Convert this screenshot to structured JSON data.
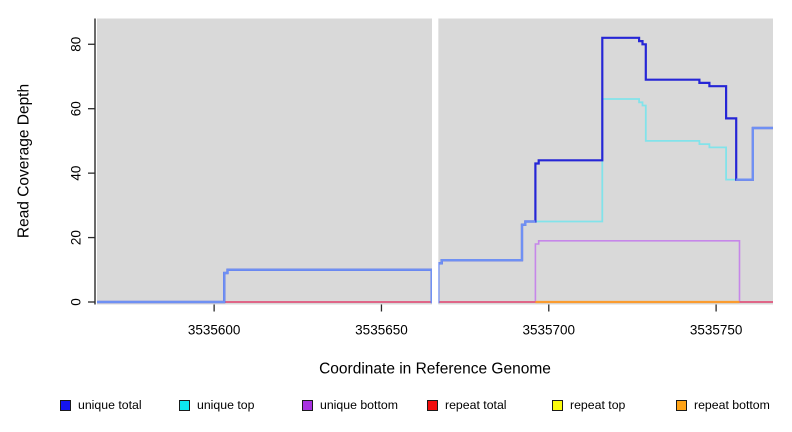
{
  "chart_data": {
    "type": "line",
    "subtype": "step",
    "title": "",
    "xlabel": "Coordinate in Reference Genome",
    "ylabel": "Read Coverage Depth",
    "xlim": [
      3535565,
      3535767
    ],
    "ylim": [
      0,
      88
    ],
    "x_ticks": [
      3535600,
      3535650,
      3535700,
      3535750
    ],
    "y_ticks": [
      0,
      20,
      40,
      60,
      80
    ],
    "grid": false,
    "panel_bg": "#d9d9d9",
    "gap_region": {
      "from": 3535665.1,
      "to": 3535667.0,
      "color": "#ffffff"
    },
    "overlap_color": "#6f90f3",
    "legend_position": "bottom",
    "draw_order": [
      "repeat top",
      "unique bottom",
      "repeat total",
      "repeat bottom",
      "unique top",
      "unique total"
    ],
    "series": [
      {
        "name": "unique total",
        "line_color": "#2626d6",
        "legend_color": "#1414f0",
        "line_width": 2.2,
        "points": [
          [
            3535565,
            0
          ],
          [
            3535603,
            9
          ],
          [
            3535604,
            10
          ],
          [
            3535665,
            0
          ],
          [
            3535667,
            12
          ],
          [
            3535668,
            13
          ],
          [
            3535692,
            24
          ],
          [
            3535693,
            25
          ],
          [
            3535696,
            43
          ],
          [
            3535697,
            44
          ],
          [
            3535716,
            82
          ],
          [
            3535727,
            81
          ],
          [
            3535728,
            80
          ],
          [
            3535729,
            69
          ],
          [
            3535745,
            68
          ],
          [
            3535748,
            67
          ],
          [
            3535753,
            57
          ],
          [
            3535756,
            38
          ],
          [
            3535761,
            54
          ],
          [
            3535767,
            54
          ]
        ]
      },
      {
        "name": "unique top",
        "line_color": "#82e3ea",
        "legend_color": "#0de6ee",
        "line_width": 1.8,
        "points": [
          [
            3535565,
            0
          ],
          [
            3535603,
            9
          ],
          [
            3535604,
            10
          ],
          [
            3535665,
            0
          ],
          [
            3535667,
            12
          ],
          [
            3535668,
            13
          ],
          [
            3535692,
            24
          ],
          [
            3535693,
            25
          ],
          [
            3535716,
            63
          ],
          [
            3535727,
            62
          ],
          [
            3535728,
            61
          ],
          [
            3535729,
            50
          ],
          [
            3535745,
            49
          ],
          [
            3535748,
            48
          ],
          [
            3535753,
            38
          ],
          [
            3535761,
            54
          ],
          [
            3535767,
            54
          ]
        ]
      },
      {
        "name": "unique bottom",
        "line_color": "#c687e9",
        "legend_color": "#a832e0",
        "line_width": 1.6,
        "points": [
          [
            3535565,
            0
          ],
          [
            3535696,
            18
          ],
          [
            3535697,
            19
          ],
          [
            3535757,
            0
          ],
          [
            3535767,
            0
          ]
        ]
      },
      {
        "name": "repeat total",
        "line_color": "#e24b78",
        "legend_color": "#f20d0d",
        "line_width": 1.6,
        "points": [
          [
            3535565,
            0
          ],
          [
            3535767,
            0
          ]
        ]
      },
      {
        "name": "repeat top",
        "line_color": "#f5f53a",
        "legend_color": "#fbfb0d",
        "line_width": 1.4,
        "points": [
          [
            3535565,
            0
          ],
          [
            3535767,
            0
          ]
        ]
      },
      {
        "name": "repeat bottom",
        "line_color": "#fb9c2f",
        "legend_color": "#ffa317",
        "line_width": 2.2,
        "points": [
          [
            3535696,
            0
          ],
          [
            3535757,
            0
          ]
        ]
      }
    ]
  }
}
